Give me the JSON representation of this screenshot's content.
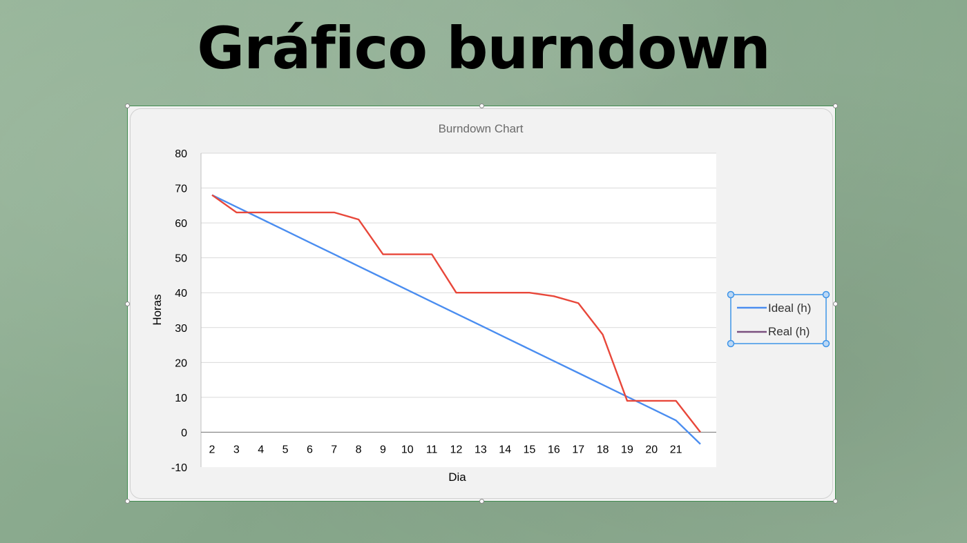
{
  "page": {
    "heading": "Gráfico burndown"
  },
  "colors": {
    "ideal": "#4a8df0",
    "real": "#e8473a",
    "legend_real_swatch": "#7a4f7e",
    "selection": "#3d94e8",
    "grid": "#d9d9d9"
  },
  "chart_data": {
    "type": "line",
    "title": "Burndown Chart",
    "xlabel": "Dia",
    "ylabel": "Horas",
    "categories": [
      "2",
      "3",
      "4",
      "5",
      "6",
      "7",
      "8",
      "9",
      "10",
      "11",
      "12",
      "13",
      "14",
      "15",
      "16",
      "17",
      "18",
      "19",
      "20",
      "21",
      ""
    ],
    "ylim": [
      -10,
      80
    ],
    "yticks": [
      80,
      70,
      60,
      50,
      40,
      30,
      20,
      10,
      0,
      -10
    ],
    "grid": true,
    "legend_position": "right",
    "series": [
      {
        "name": "Ideal (h)",
        "values": [
          68,
          64.6,
          61.2,
          57.8,
          54.4,
          51,
          47.6,
          44.2,
          40.8,
          37.4,
          34,
          30.6,
          27.2,
          23.8,
          20.4,
          17,
          13.6,
          10.2,
          6.8,
          3.4,
          -3.4
        ]
      },
      {
        "name": "Real (h)",
        "values": [
          68,
          63,
          63,
          63,
          63,
          63,
          61,
          51,
          51,
          51,
          40,
          40,
          40,
          40,
          39,
          37,
          28,
          9,
          9,
          9,
          0
        ]
      }
    ]
  }
}
